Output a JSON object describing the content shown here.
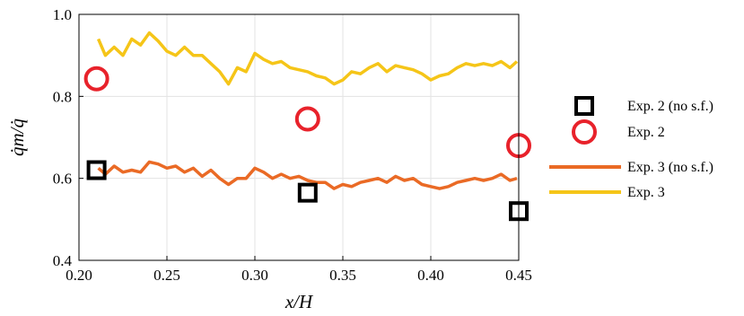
{
  "chart_data": {
    "type": "line",
    "xlabel": "x/H",
    "ylabel": "q̇m/q̇",
    "xlim": [
      0.2,
      0.45
    ],
    "ylim": [
      0.4,
      1.0
    ],
    "xticks": [
      "0.20",
      "0.25",
      "0.30",
      "0.35",
      "0.40",
      "0.45"
    ],
    "yticks": [
      "0.4",
      "0.6",
      "0.8",
      "1.0"
    ],
    "grid": true,
    "legend_position": "right",
    "series": [
      {
        "name": "Exp. 2 (no s.f.)",
        "kind": "marker",
        "marker": "square",
        "color": "#000000",
        "x": [
          0.21,
          0.33,
          0.45
        ],
        "y": [
          0.62,
          0.565,
          0.52
        ]
      },
      {
        "name": "Exp. 2",
        "kind": "marker",
        "marker": "circle",
        "color": "#e8222b",
        "x": [
          0.21,
          0.33,
          0.45
        ],
        "y": [
          0.843,
          0.745,
          0.68
        ]
      },
      {
        "name": "Exp. 3 (no s.f.)",
        "kind": "line",
        "color": "#ea6a25",
        "x": [
          0.211,
          0.215,
          0.22,
          0.225,
          0.23,
          0.235,
          0.24,
          0.245,
          0.25,
          0.255,
          0.26,
          0.265,
          0.27,
          0.275,
          0.28,
          0.285,
          0.29,
          0.295,
          0.3,
          0.305,
          0.31,
          0.315,
          0.32,
          0.325,
          0.33,
          0.335,
          0.34,
          0.345,
          0.35,
          0.355,
          0.36,
          0.365,
          0.37,
          0.375,
          0.38,
          0.385,
          0.39,
          0.395,
          0.4,
          0.405,
          0.41,
          0.415,
          0.42,
          0.425,
          0.43,
          0.435,
          0.44,
          0.445,
          0.449
        ],
        "y": [
          0.625,
          0.61,
          0.63,
          0.615,
          0.62,
          0.615,
          0.64,
          0.635,
          0.625,
          0.63,
          0.615,
          0.625,
          0.605,
          0.62,
          0.6,
          0.585,
          0.6,
          0.6,
          0.625,
          0.615,
          0.6,
          0.61,
          0.6,
          0.605,
          0.595,
          0.59,
          0.59,
          0.575,
          0.585,
          0.58,
          0.59,
          0.595,
          0.6,
          0.59,
          0.605,
          0.595,
          0.6,
          0.585,
          0.58,
          0.575,
          0.58,
          0.59,
          0.595,
          0.6,
          0.595,
          0.6,
          0.61,
          0.595,
          0.6
        ]
      },
      {
        "name": "Exp. 3",
        "kind": "line",
        "color": "#f5c518",
        "x": [
          0.211,
          0.215,
          0.22,
          0.225,
          0.23,
          0.235,
          0.24,
          0.245,
          0.25,
          0.255,
          0.26,
          0.265,
          0.27,
          0.275,
          0.28,
          0.285,
          0.29,
          0.295,
          0.3,
          0.305,
          0.31,
          0.315,
          0.32,
          0.325,
          0.33,
          0.335,
          0.34,
          0.345,
          0.35,
          0.355,
          0.36,
          0.365,
          0.37,
          0.375,
          0.38,
          0.385,
          0.39,
          0.395,
          0.4,
          0.405,
          0.41,
          0.415,
          0.42,
          0.425,
          0.43,
          0.435,
          0.44,
          0.445,
          0.449
        ],
        "y": [
          0.94,
          0.9,
          0.92,
          0.9,
          0.94,
          0.925,
          0.955,
          0.935,
          0.91,
          0.9,
          0.92,
          0.9,
          0.9,
          0.88,
          0.86,
          0.83,
          0.87,
          0.86,
          0.905,
          0.89,
          0.88,
          0.885,
          0.87,
          0.865,
          0.86,
          0.85,
          0.845,
          0.83,
          0.84,
          0.86,
          0.855,
          0.87,
          0.88,
          0.86,
          0.875,
          0.87,
          0.865,
          0.855,
          0.84,
          0.85,
          0.855,
          0.87,
          0.88,
          0.875,
          0.88,
          0.875,
          0.885,
          0.87,
          0.885
        ]
      }
    ]
  }
}
